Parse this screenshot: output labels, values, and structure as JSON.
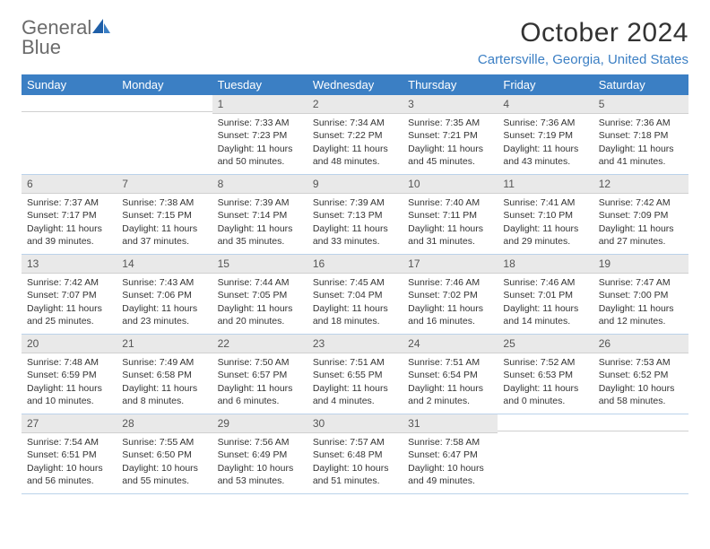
{
  "logo": {
    "text_gray": "General",
    "text_blue": "Blue"
  },
  "title": "October 2024",
  "location": "Cartersville, Georgia, United States",
  "header_bg": "#3b7fc4",
  "daynum_bg": "#e9e9e9",
  "weekdays": [
    "Sunday",
    "Monday",
    "Tuesday",
    "Wednesday",
    "Thursday",
    "Friday",
    "Saturday"
  ],
  "weeks": [
    [
      {
        "n": "",
        "lines": [
          "",
          "",
          "",
          ""
        ]
      },
      {
        "n": "",
        "lines": [
          "",
          "",
          "",
          ""
        ]
      },
      {
        "n": "1",
        "lines": [
          "Sunrise: 7:33 AM",
          "Sunset: 7:23 PM",
          "Daylight: 11 hours",
          "and 50 minutes."
        ]
      },
      {
        "n": "2",
        "lines": [
          "Sunrise: 7:34 AM",
          "Sunset: 7:22 PM",
          "Daylight: 11 hours",
          "and 48 minutes."
        ]
      },
      {
        "n": "3",
        "lines": [
          "Sunrise: 7:35 AM",
          "Sunset: 7:21 PM",
          "Daylight: 11 hours",
          "and 45 minutes."
        ]
      },
      {
        "n": "4",
        "lines": [
          "Sunrise: 7:36 AM",
          "Sunset: 7:19 PM",
          "Daylight: 11 hours",
          "and 43 minutes."
        ]
      },
      {
        "n": "5",
        "lines": [
          "Sunrise: 7:36 AM",
          "Sunset: 7:18 PM",
          "Daylight: 11 hours",
          "and 41 minutes."
        ]
      }
    ],
    [
      {
        "n": "6",
        "lines": [
          "Sunrise: 7:37 AM",
          "Sunset: 7:17 PM",
          "Daylight: 11 hours",
          "and 39 minutes."
        ]
      },
      {
        "n": "7",
        "lines": [
          "Sunrise: 7:38 AM",
          "Sunset: 7:15 PM",
          "Daylight: 11 hours",
          "and 37 minutes."
        ]
      },
      {
        "n": "8",
        "lines": [
          "Sunrise: 7:39 AM",
          "Sunset: 7:14 PM",
          "Daylight: 11 hours",
          "and 35 minutes."
        ]
      },
      {
        "n": "9",
        "lines": [
          "Sunrise: 7:39 AM",
          "Sunset: 7:13 PM",
          "Daylight: 11 hours",
          "and 33 minutes."
        ]
      },
      {
        "n": "10",
        "lines": [
          "Sunrise: 7:40 AM",
          "Sunset: 7:11 PM",
          "Daylight: 11 hours",
          "and 31 minutes."
        ]
      },
      {
        "n": "11",
        "lines": [
          "Sunrise: 7:41 AM",
          "Sunset: 7:10 PM",
          "Daylight: 11 hours",
          "and 29 minutes."
        ]
      },
      {
        "n": "12",
        "lines": [
          "Sunrise: 7:42 AM",
          "Sunset: 7:09 PM",
          "Daylight: 11 hours",
          "and 27 minutes."
        ]
      }
    ],
    [
      {
        "n": "13",
        "lines": [
          "Sunrise: 7:42 AM",
          "Sunset: 7:07 PM",
          "Daylight: 11 hours",
          "and 25 minutes."
        ]
      },
      {
        "n": "14",
        "lines": [
          "Sunrise: 7:43 AM",
          "Sunset: 7:06 PM",
          "Daylight: 11 hours",
          "and 23 minutes."
        ]
      },
      {
        "n": "15",
        "lines": [
          "Sunrise: 7:44 AM",
          "Sunset: 7:05 PM",
          "Daylight: 11 hours",
          "and 20 minutes."
        ]
      },
      {
        "n": "16",
        "lines": [
          "Sunrise: 7:45 AM",
          "Sunset: 7:04 PM",
          "Daylight: 11 hours",
          "and 18 minutes."
        ]
      },
      {
        "n": "17",
        "lines": [
          "Sunrise: 7:46 AM",
          "Sunset: 7:02 PM",
          "Daylight: 11 hours",
          "and 16 minutes."
        ]
      },
      {
        "n": "18",
        "lines": [
          "Sunrise: 7:46 AM",
          "Sunset: 7:01 PM",
          "Daylight: 11 hours",
          "and 14 minutes."
        ]
      },
      {
        "n": "19",
        "lines": [
          "Sunrise: 7:47 AM",
          "Sunset: 7:00 PM",
          "Daylight: 11 hours",
          "and 12 minutes."
        ]
      }
    ],
    [
      {
        "n": "20",
        "lines": [
          "Sunrise: 7:48 AM",
          "Sunset: 6:59 PM",
          "Daylight: 11 hours",
          "and 10 minutes."
        ]
      },
      {
        "n": "21",
        "lines": [
          "Sunrise: 7:49 AM",
          "Sunset: 6:58 PM",
          "Daylight: 11 hours",
          "and 8 minutes."
        ]
      },
      {
        "n": "22",
        "lines": [
          "Sunrise: 7:50 AM",
          "Sunset: 6:57 PM",
          "Daylight: 11 hours",
          "and 6 minutes."
        ]
      },
      {
        "n": "23",
        "lines": [
          "Sunrise: 7:51 AM",
          "Sunset: 6:55 PM",
          "Daylight: 11 hours",
          "and 4 minutes."
        ]
      },
      {
        "n": "24",
        "lines": [
          "Sunrise: 7:51 AM",
          "Sunset: 6:54 PM",
          "Daylight: 11 hours",
          "and 2 minutes."
        ]
      },
      {
        "n": "25",
        "lines": [
          "Sunrise: 7:52 AM",
          "Sunset: 6:53 PM",
          "Daylight: 11 hours",
          "and 0 minutes."
        ]
      },
      {
        "n": "26",
        "lines": [
          "Sunrise: 7:53 AM",
          "Sunset: 6:52 PM",
          "Daylight: 10 hours",
          "and 58 minutes."
        ]
      }
    ],
    [
      {
        "n": "27",
        "lines": [
          "Sunrise: 7:54 AM",
          "Sunset: 6:51 PM",
          "Daylight: 10 hours",
          "and 56 minutes."
        ]
      },
      {
        "n": "28",
        "lines": [
          "Sunrise: 7:55 AM",
          "Sunset: 6:50 PM",
          "Daylight: 10 hours",
          "and 55 minutes."
        ]
      },
      {
        "n": "29",
        "lines": [
          "Sunrise: 7:56 AM",
          "Sunset: 6:49 PM",
          "Daylight: 10 hours",
          "and 53 minutes."
        ]
      },
      {
        "n": "30",
        "lines": [
          "Sunrise: 7:57 AM",
          "Sunset: 6:48 PM",
          "Daylight: 10 hours",
          "and 51 minutes."
        ]
      },
      {
        "n": "31",
        "lines": [
          "Sunrise: 7:58 AM",
          "Sunset: 6:47 PM",
          "Daylight: 10 hours",
          "and 49 minutes."
        ]
      },
      {
        "n": "",
        "lines": [
          "",
          "",
          "",
          ""
        ]
      },
      {
        "n": "",
        "lines": [
          "",
          "",
          "",
          ""
        ]
      }
    ]
  ]
}
